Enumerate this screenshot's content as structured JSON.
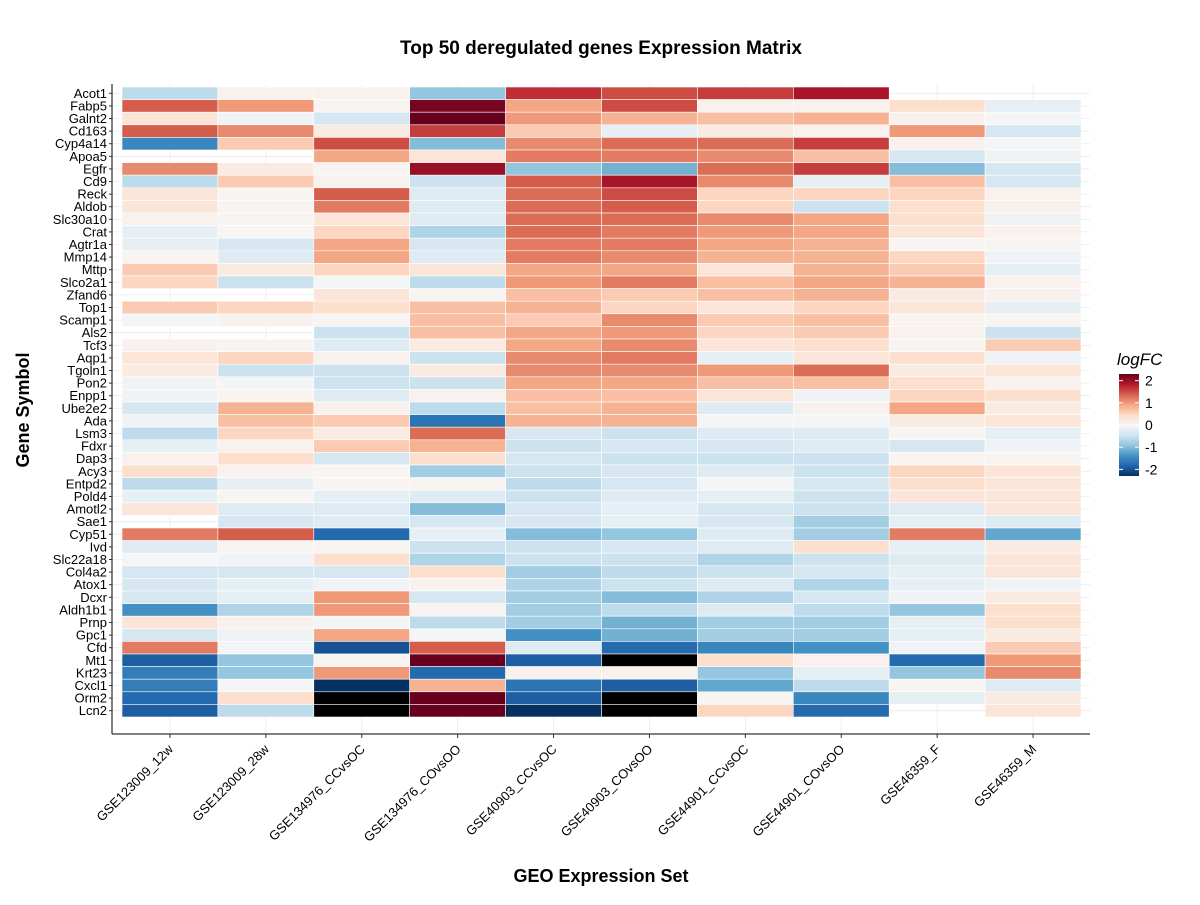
{
  "chart_data": {
    "type": "heatmap",
    "title": "Top 50 deregulated genes Expression Matrix",
    "xlabel": "GEO Expression Set",
    "ylabel": "Gene Symbol",
    "legend": {
      "title": "logFC",
      "ticks": [
        2,
        1,
        0,
        -1,
        -2
      ],
      "tick_labels": [
        "2",
        "1",
        "0",
        "-1",
        "-2"
      ],
      "range": [
        -2.3,
        2.3
      ],
      "palette": [
        "#053061",
        "#2166ac",
        "#4393c3",
        "#92c5de",
        "#d1e5f0",
        "#f7f7f7",
        "#fddbc7",
        "#f4a582",
        "#d6604d",
        "#b2182b",
        "#67001f"
      ]
    },
    "na_color": "#ffffff",
    "columns": [
      "GSE123009_12w",
      "GSE123009_28w",
      "GSE134976_CCvsOC",
      "GSE134976_COvsOO",
      "GSE40903_CCvsOC",
      "GSE40903_COvsOO",
      "GSE44901_CCvsOC",
      "GSE44901_COvsOO",
      "GSE46359_F",
      "GSE46359_M"
    ],
    "rows": [
      "Acot1",
      "Fabp5",
      "Galnt2",
      "Cd163",
      "Cyp4a14",
      "Apoa5",
      "Egfr",
      "Cd9",
      "Reck",
      "Aldob",
      "Slc30a10",
      "Crat",
      "Agtr1a",
      "Mmp14",
      "Mttp",
      "Slco2a1",
      "Zfand6",
      "Top1",
      "Scamp1",
      "Als2",
      "Tcf3",
      "Aqp1",
      "Tgoln1",
      "Pon2",
      "Enpp1",
      "Ube2e2",
      "Ada",
      "Lsm3",
      "Fdxr",
      "Dap3",
      "Acy3",
      "Entpd2",
      "Pold4",
      "Amotl2",
      "Sae1",
      "Cyp51",
      "Ivd",
      "Slc22a18",
      "Col4a2",
      "Atox1",
      "Dcxr",
      "Aldh1b1",
      "Prnp",
      "Gpc1",
      "Cfd",
      "Mt1",
      "Krt23",
      "Cxcl1",
      "Orm2",
      "Lcn2"
    ],
    "values": [
      [
        -0.6,
        0.1,
        0.1,
        -0.9,
        1.7,
        1.5,
        1.6,
        1.9,
        null,
        null
      ],
      [
        1.4,
        1.0,
        0.05,
        2.2,
        0.9,
        1.5,
        0.1,
        0.1,
        0.4,
        -0.2
      ],
      [
        0.3,
        -0.1,
        -0.4,
        2.3,
        1.0,
        0.8,
        0.7,
        0.8,
        0.1,
        -0.05
      ],
      [
        1.4,
        1.1,
        0.2,
        1.6,
        0.6,
        -0.2,
        0.2,
        0.1,
        1.0,
        -0.4
      ],
      [
        -1.5,
        0.6,
        1.5,
        -1.0,
        1.1,
        1.3,
        1.3,
        1.6,
        0.1,
        -0.05
      ],
      [
        null,
        null,
        0.9,
        0.3,
        1.2,
        1.2,
        1.1,
        0.7,
        -0.4,
        -0.1
      ],
      [
        1.1,
        0.2,
        0.05,
        2.0,
        -0.9,
        -1.1,
        1.3,
        1.6,
        -1.0,
        -0.4
      ],
      [
        -0.6,
        0.6,
        0.1,
        -0.5,
        1.4,
        1.9,
        1.1,
        -0.2,
        0.7,
        -0.4
      ],
      [
        0.3,
        0.05,
        1.4,
        -0.3,
        1.3,
        1.5,
        0.5,
        0.5,
        0.5,
        0.1
      ],
      [
        0.3,
        0.05,
        1.2,
        -0.3,
        1.3,
        1.4,
        0.5,
        -0.5,
        0.4,
        0.1
      ],
      [
        0.1,
        0.05,
        0.3,
        -0.3,
        1.3,
        1.3,
        1.1,
        0.9,
        0.4,
        -0.1
      ],
      [
        -0.2,
        0.05,
        0.5,
        -0.7,
        1.3,
        1.2,
        1.0,
        0.9,
        0.3,
        0.1
      ],
      [
        -0.2,
        -0.4,
        0.9,
        -0.4,
        1.2,
        1.2,
        0.9,
        0.8,
        0.05,
        0.05
      ],
      [
        0.05,
        -0.3,
        0.9,
        -0.3,
        1.2,
        1.1,
        0.8,
        0.8,
        0.5,
        -0.1
      ],
      [
        0.6,
        0.2,
        0.5,
        0.3,
        0.9,
        0.9,
        0.3,
        0.8,
        0.6,
        -0.2
      ],
      [
        0.5,
        -0.5,
        -0.05,
        -0.6,
        1.0,
        1.2,
        0.7,
        0.9,
        0.8,
        0.1
      ],
      [
        null,
        null,
        0.3,
        0.05,
        0.7,
        0.6,
        0.7,
        0.8,
        0.2,
        0.1
      ],
      [
        0.6,
        0.5,
        0.4,
        0.7,
        0.8,
        0.5,
        0.3,
        0.5,
        0.3,
        -0.2
      ],
      [
        -0.05,
        0.1,
        0.05,
        0.7,
        0.6,
        1.1,
        0.6,
        0.7,
        0.05,
        0.05
      ],
      [
        null,
        null,
        -0.5,
        0.7,
        0.9,
        1.0,
        0.5,
        0.6,
        0.1,
        -0.5
      ],
      [
        0.1,
        0.05,
        -0.3,
        0.2,
        0.9,
        1.1,
        0.3,
        0.4,
        0.05,
        0.6
      ],
      [
        0.3,
        0.5,
        0.1,
        -0.5,
        1.1,
        1.2,
        -0.2,
        0.3,
        0.4,
        -0.1
      ],
      [
        0.2,
        -0.5,
        -0.5,
        0.2,
        1.1,
        1.1,
        1.0,
        1.3,
        0.2,
        0.3
      ],
      [
        -0.1,
        -0.05,
        -0.5,
        -0.5,
        0.9,
        0.9,
        0.7,
        0.7,
        0.4,
        0.1
      ],
      [
        -0.1,
        0.05,
        -0.3,
        0.1,
        0.7,
        0.7,
        0.3,
        -0.1,
        0.5,
        0.4
      ],
      [
        -0.4,
        0.8,
        0.1,
        -0.6,
        0.7,
        0.8,
        -0.3,
        0.1,
        0.9,
        0.2
      ],
      [
        -0.1,
        0.7,
        0.6,
        -1.7,
        0.8,
        0.8,
        -0.05,
        -0.05,
        0.2,
        0.3
      ],
      [
        -0.6,
        0.5,
        0.2,
        1.3,
        -0.4,
        -0.5,
        -0.3,
        -0.3,
        0.05,
        -0.2
      ],
      [
        -0.2,
        0.1,
        0.6,
        0.8,
        -0.5,
        -0.4,
        -0.4,
        -0.3,
        -0.4,
        -0.1
      ],
      [
        0.1,
        0.4,
        -0.4,
        0.4,
        -0.4,
        -0.5,
        -0.5,
        -0.5,
        0.05,
        0.05
      ],
      [
        0.4,
        0.1,
        0.05,
        -0.8,
        -0.5,
        -0.4,
        -0.3,
        -0.5,
        0.5,
        0.3
      ],
      [
        -0.6,
        -0.2,
        0.05,
        0.05,
        -0.6,
        -0.4,
        -0.05,
        -0.4,
        0.4,
        0.3
      ],
      [
        -0.2,
        0.05,
        -0.2,
        -0.3,
        -0.5,
        -0.3,
        -0.2,
        -0.5,
        0.3,
        0.3
      ],
      [
        0.3,
        -0.3,
        -0.3,
        -1.0,
        -0.4,
        -0.2,
        -0.4,
        -0.5,
        -0.3,
        0.3
      ],
      [
        null,
        -0.4,
        -0.3,
        -0.4,
        -0.4,
        -0.2,
        -0.4,
        -0.8,
        -0.2,
        -0.3
      ],
      [
        1.2,
        1.4,
        -1.8,
        -0.2,
        -1.0,
        -0.9,
        -0.3,
        -0.8,
        1.2,
        -1.2
      ],
      [
        -0.3,
        0.05,
        0.05,
        -0.5,
        -0.5,
        -0.4,
        -0.3,
        0.4,
        -0.2,
        0.2
      ],
      [
        -0.05,
        -0.1,
        0.4,
        -0.7,
        -0.5,
        -0.5,
        -0.7,
        -0.5,
        -0.3,
        0.3
      ],
      [
        -0.4,
        -0.4,
        -0.4,
        0.4,
        -0.8,
        -0.6,
        -0.5,
        -0.4,
        -0.2,
        0.3
      ],
      [
        -0.4,
        -0.2,
        -0.1,
        0.1,
        -0.7,
        -0.5,
        -0.3,
        -0.7,
        -0.2,
        -0.1
      ],
      [
        -0.4,
        -0.2,
        1.0,
        -0.4,
        -0.8,
        -1.0,
        -0.7,
        -0.4,
        -0.1,
        0.2
      ],
      [
        -1.4,
        -0.7,
        1.0,
        0.05,
        -0.8,
        -0.6,
        -0.3,
        -0.6,
        -0.9,
        0.4
      ],
      [
        0.3,
        0.1,
        -0.05,
        -0.6,
        -0.8,
        -1.1,
        -0.8,
        -0.8,
        -0.2,
        0.4
      ],
      [
        -0.4,
        -0.1,
        0.9,
        -0.05,
        -1.4,
        -1.1,
        -0.8,
        -0.8,
        -0.2,
        0.2
      ],
      [
        1.2,
        -0.05,
        -2.0,
        1.4,
        -0.3,
        -1.8,
        -1.5,
        -1.4,
        -0.1,
        0.6
      ],
      [
        -1.9,
        -0.9,
        0.05,
        2.3,
        -1.9,
        -3.0,
        0.4,
        0.1,
        -1.8,
        1.0
      ],
      [
        -1.6,
        -0.9,
        1.0,
        -1.8,
        0.1,
        0.1,
        -0.9,
        -0.2,
        -0.9,
        1.1
      ],
      [
        -1.6,
        -0.05,
        -2.4,
        0.8,
        -1.7,
        -1.9,
        -1.2,
        -0.6,
        0.05,
        -0.3
      ],
      [
        -1.8,
        0.4,
        -3.0,
        2.4,
        -1.9,
        -3.0,
        0.05,
        -1.5,
        -0.2,
        0.2
      ],
      [
        -1.9,
        -0.6,
        -3.0,
        2.4,
        -2.5,
        -3.0,
        0.5,
        -1.8,
        null,
        0.3
      ]
    ]
  }
}
